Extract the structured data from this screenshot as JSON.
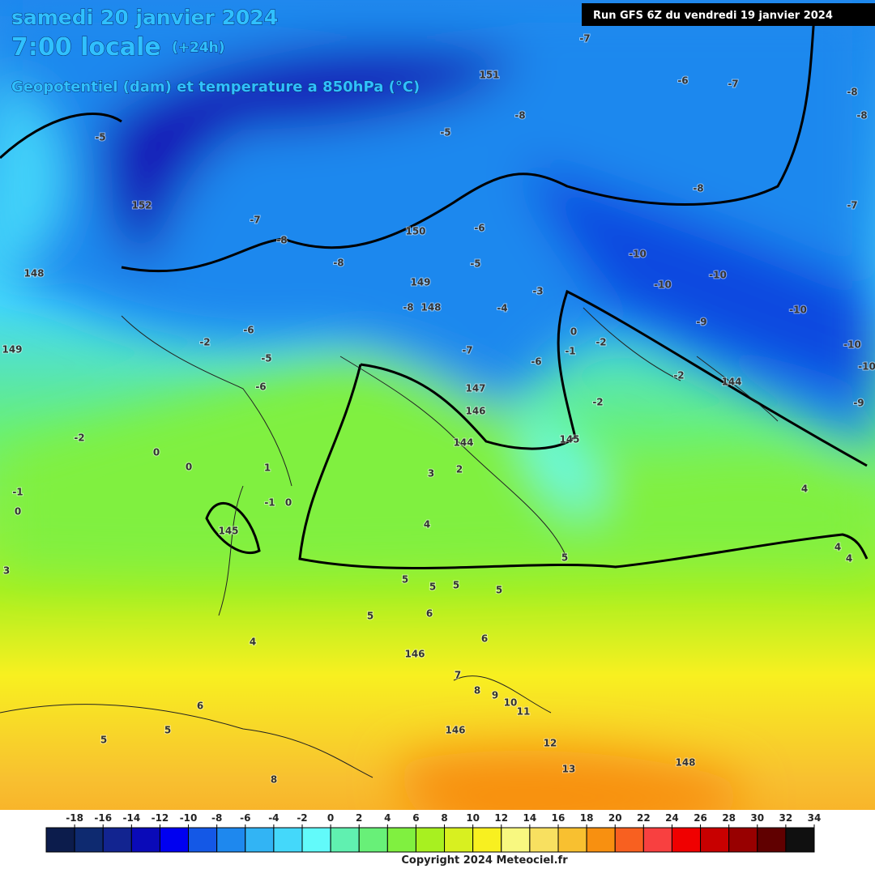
{
  "header": {
    "title": "samedi 20 janvier 2024",
    "time": "7:00 locale",
    "lead": "(+24h)",
    "subtitle": "Geopotentiel (dam) et temperature a 850hPa (°C)",
    "run": "Run GFS 6Z du vendredi 19 janvier 2024"
  },
  "map_labels": [
    -8,
    -8,
    -7,
    -6,
    -7,
    151,
    -8,
    -5,
    -7,
    -8,
    -10,
    -10,
    -10,
    -10,
    -9,
    -10,
    -10,
    -9,
    150,
    -8,
    -8,
    -7,
    -5,
    152,
    149,
    148,
    -6,
    -5,
    -4,
    -3,
    -7,
    -6,
    0,
    -1,
    -2,
    -2,
    -2,
    144,
    147,
    146,
    145,
    144,
    3,
    2,
    4,
    4,
    5,
    5,
    5,
    5,
    5,
    6,
    5,
    6,
    146,
    7,
    8,
    9,
    10,
    11,
    146,
    12,
    13,
    148,
    6,
    5,
    5,
    8,
    4,
    145,
    -1,
    0,
    1,
    0,
    0,
    -2,
    -1,
    0,
    148,
    149,
    -6,
    -2,
    -5,
    -6,
    -8,
    3,
    4,
    4
  ],
  "legend": {
    "ticks": [
      -18,
      -16,
      -14,
      -12,
      -10,
      -8,
      -6,
      -4,
      -2,
      0,
      2,
      4,
      6,
      8,
      10,
      12,
      14,
      16,
      18,
      20,
      22,
      24,
      26,
      28,
      30,
      32,
      34
    ],
    "colors": [
      "#0c1c4c",
      "#0e2a70",
      "#122490",
      "#0a0ab8",
      "#0000f0",
      "#1458e6",
      "#1e88ee",
      "#32b4f4",
      "#44d8fa",
      "#62fafa",
      "#60f0b0",
      "#68f078",
      "#80f040",
      "#a8f020",
      "#d8f020",
      "#f8f020",
      "#f8f880",
      "#f8e060",
      "#f8c030",
      "#f89010",
      "#f86020",
      "#f84040",
      "#f00000",
      "#c80000",
      "#980000",
      "#600000",
      "#101010"
    ]
  },
  "copyright": "Copyright 2024 Meteociel.fr"
}
